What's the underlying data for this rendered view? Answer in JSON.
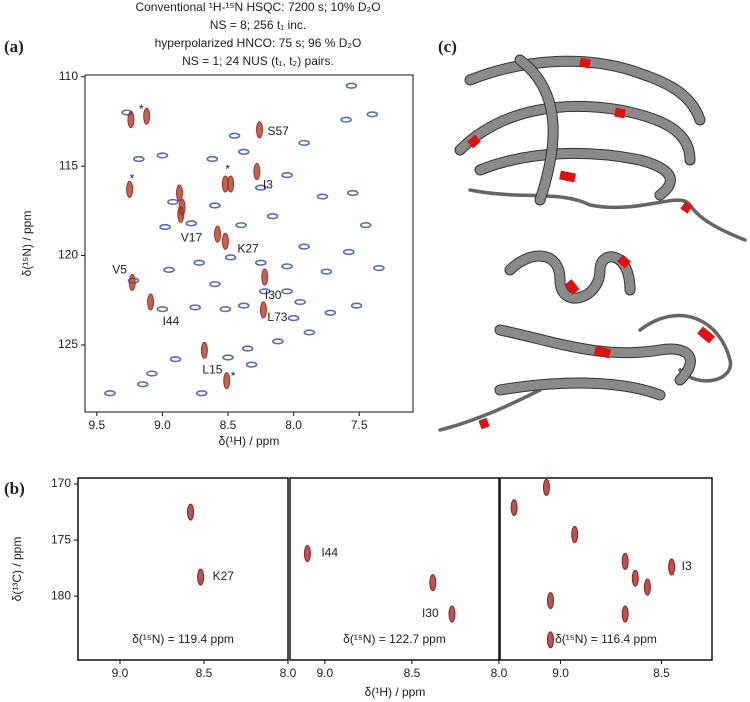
{
  "panel_labels": [
    "(a)",
    "(b)",
    "(c)"
  ],
  "chart_data": [
    {
      "type": "scatter",
      "xlabel": "δ(¹H) / ppm",
      "ylabel": "δ(¹⁵N) / ppm",
      "xlim": [
        9.59,
        7.09
      ],
      "ylim": [
        109.9,
        128.75
      ],
      "xticks": [
        9.5,
        {
          "value": 9.0,
          "label": "9.0"
        },
        8.5,
        {
          "value": 8.0,
          "label": "8.0"
        },
        7.5
      ],
      "yticks": [
        110,
        115,
        120,
        125
      ],
      "series": [
        {
          "name": "Conventional ¹H-¹⁵N HSQC: 7200 s; 10% D₂O",
          "detail": "NS = 8; 256 t₁ inc.",
          "color": "#5b6cb3",
          "x": [
            8.45,
            8.62,
            8.38,
            9.0,
            8.92,
            8.78,
            8.98,
            8.6,
            8.4,
            8.16,
            7.78,
            7.55,
            7.45,
            7.58,
            7.92,
            8.05,
            8.25,
            8.48,
            8.72,
            8.95,
            9.22,
            8.22,
            8.05,
            7.95,
            8.38,
            8.52,
            8.75,
            9.0,
            8.0,
            7.72,
            7.52,
            7.88,
            8.12,
            8.35,
            8.5,
            8.9,
            9.08,
            9.15,
            9.4,
            8.7,
            7.56,
            7.4,
            7.6,
            7.92,
            8.05,
            8.32,
            9.27,
            9.18,
            7.35,
            7.75,
            8.25,
            8.6
          ],
          "y": [
            113.3,
            114.6,
            114.2,
            114.4,
            117.0,
            118.2,
            118.4,
            117.2,
            118.3,
            117.8,
            116.7,
            116.5,
            118.3,
            119.8,
            119.5,
            120.6,
            120.4,
            120.1,
            120.4,
            120.8,
            121.4,
            122.0,
            122.0,
            122.6,
            122.8,
            123.0,
            122.9,
            123.0,
            123.5,
            123.2,
            122.8,
            124.3,
            124.8,
            125.2,
            125.7,
            125.8,
            126.6,
            127.2,
            127.7,
            127.7,
            110.5,
            112.1,
            112.4,
            113.7,
            115.5,
            126.1,
            112.0,
            114.6,
            120.7,
            120.9,
            116.2,
            121.6
          ]
        },
        {
          "name": "hyperpolarized HNCO: 75 s; 96 % D₂O",
          "detail": "NS = 1; 24 NUS (t₁, t₂) pairs.",
          "color": "#a5321f",
          "x": [
            8.26,
            8.28,
            8.86,
            8.52,
            8.58,
            9.23,
            9.09,
            8.68,
            8.23,
            8.22,
            9.24,
            9.25,
            8.52,
            8.51,
            9.12,
            8.87,
            8.48,
            8.85
          ],
          "y": [
            112.97,
            115.3,
            117.7,
            119.2,
            118.8,
            121.5,
            122.6,
            125.3,
            123.04,
            121.2,
            112.4,
            116.3,
            116.0,
            127.0,
            112.2,
            116.5,
            116.0,
            117.3
          ],
          "labels": [
            "S57",
            "I3",
            "V17",
            "K27",
            null,
            "V5",
            "I44",
            "L15",
            "L73",
            "I30",
            "*",
            "*",
            "*",
            "*",
            null,
            null,
            null,
            null
          ]
        }
      ]
    },
    {
      "type": "scatter",
      "ylabel": "δ(¹³C) / ppm",
      "note": "δ(¹⁵N) = 119.4 ppm",
      "xlim": [
        9.25,
        8.0
      ],
      "ylim": [
        169.46,
        185.7
      ],
      "xticks": [
        {
          "value": 9.0,
          "label": "9.0"
        },
        8.5,
        {
          "value": 8.0,
          "label": "8.0"
        }
      ],
      "yticks": [
        170,
        175,
        180
      ],
      "series": [
        {
          "color": "#9b1b1b",
          "x": [
            8.58,
            8.52
          ],
          "y": [
            172.5,
            178.3
          ],
          "labels": [
            null,
            "K27"
          ]
        }
      ]
    },
    {
      "type": "scatter",
      "xlabel": "δ(¹H) / ppm",
      "note": "δ(¹⁵N) = 122.7 ppm",
      "xlim": [
        9.2,
        8.0
      ],
      "ylim": [
        169.46,
        185.7
      ],
      "xticks": [
        {
          "value": 9.0,
          "label": "9.0"
        },
        8.5,
        {
          "value": 8.0,
          "label": "8.0"
        }
      ],
      "series": [
        {
          "color": "#9b1b1b",
          "x": [
            9.1,
            8.38,
            8.27
          ],
          "y": [
            176.2,
            178.8,
            181.6
          ],
          "labels": [
            "I44",
            null,
            "I30"
          ]
        }
      ]
    },
    {
      "type": "scatter",
      "note": "δ(¹⁵N) = 116.4 ppm",
      "xlim": [
        9.3,
        8.25
      ],
      "ylim": [
        169.46,
        185.7
      ],
      "xticks": [
        {
          "value": 9.0,
          "label": "9.0"
        },
        8.5
      ],
      "series": [
        {
          "color": "#9b1b1b",
          "x": [
            9.07,
            9.23,
            9.05,
            9.05,
            8.93,
            8.68,
            8.63,
            8.68,
            8.45,
            8.57
          ],
          "y": [
            170.3,
            172.1,
            180.4,
            183.9,
            174.5,
            176.9,
            178.4,
            181.6,
            177.4,
            179.2
          ],
          "labels": [
            null,
            null,
            null,
            null,
            null,
            null,
            null,
            null,
            "I3",
            null
          ]
        }
      ]
    }
  ]
}
